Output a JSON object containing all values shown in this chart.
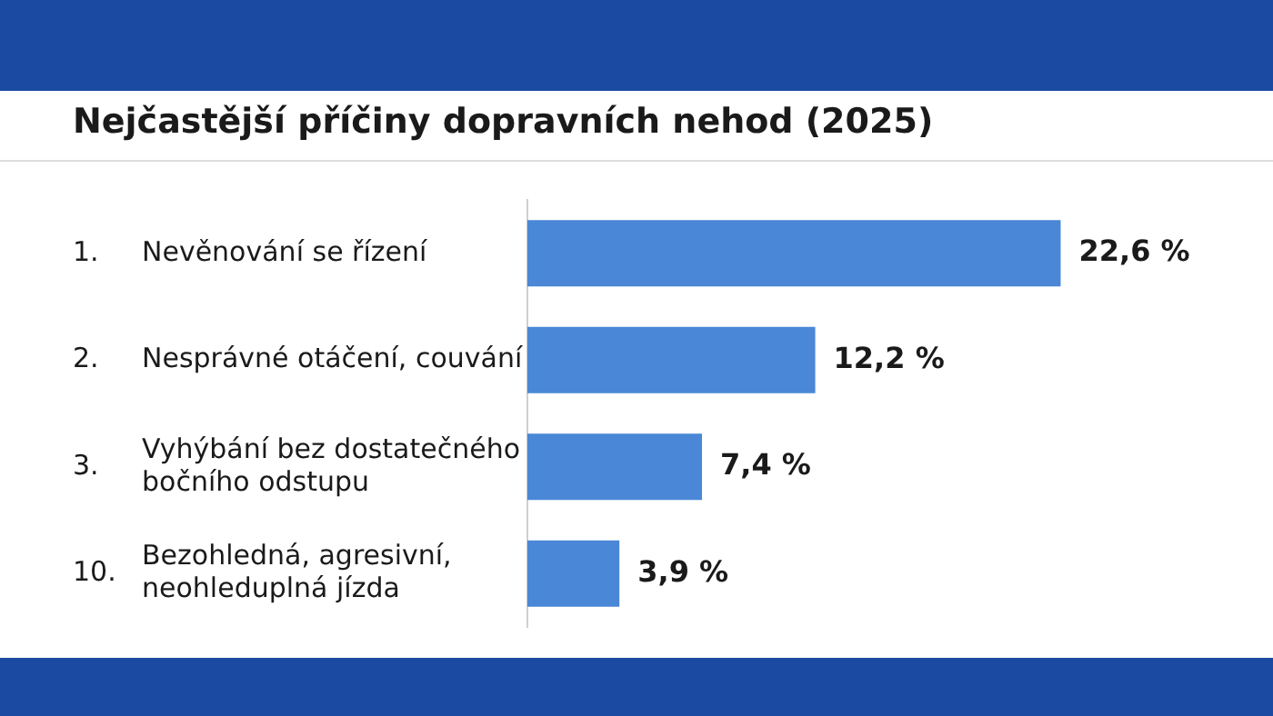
{
  "chart_data": {
    "type": "bar",
    "orientation": "horizontal",
    "title": "Nejčastější příčiny dopravních nehod (2025)",
    "categories": [
      "Nevěnování se řízení",
      "Nesprávné otáčení, couvání",
      "Vyhýbání bez dostatečného bočního odstupu",
      "Bezohledná, agresivní, neohleduplná jízda"
    ],
    "values": [
      22.6,
      12.2,
      7.4,
      3.9
    ],
    "value_labels": [
      "22,6 %",
      "12,2 %",
      "7,4 %",
      "3,9 %"
    ],
    "color": "#4a87d6",
    "annotations": [
      "1.",
      "2.",
      "3.",
      "10."
    ],
    "grid": false,
    "legend": false
  }
}
